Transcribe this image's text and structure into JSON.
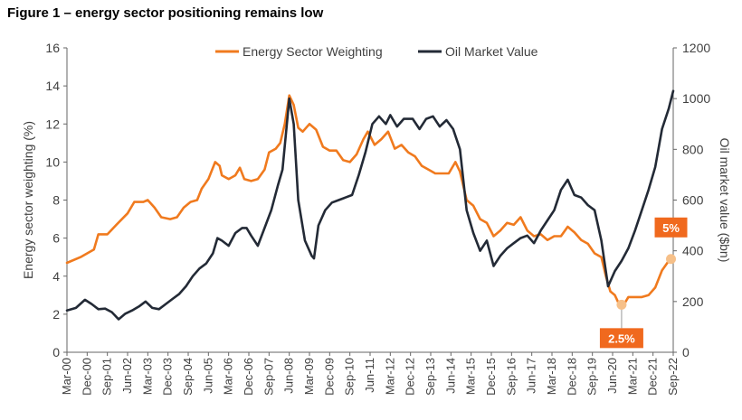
{
  "figure_title": "Figure 1 – energy sector positioning remains low",
  "colors": {
    "energy": "#f07a1e",
    "oil": "#232a36",
    "callout": "#f0691e",
    "marker": "#f6c089",
    "axis": "#666666"
  },
  "chart_data": {
    "type": "line",
    "title": "Figure 1 – energy sector positioning remains low",
    "ylabel": "Energy sector weighting (%)",
    "y2label": "Oil market value ($bn)",
    "xlabel": "",
    "ylim": [
      0,
      16
    ],
    "y2lim": [
      0,
      1200
    ],
    "yticks": [
      "0",
      "2",
      "4",
      "6",
      "8",
      "10",
      "12",
      "14",
      "16"
    ],
    "y2ticks": [
      "0",
      "200",
      "400",
      "600",
      "800",
      "1000",
      "1200"
    ],
    "xtick_labels": [
      "Mar-00",
      "Dec-00",
      "Sep-01",
      "Jun-02",
      "Mar-03",
      "Dec-03",
      "Sep-04",
      "Jun-05",
      "Mar-06",
      "Dec-06",
      "Sep-07",
      "Jun-08",
      "Mar-09",
      "Dec-09",
      "Sep-10",
      "Jun-11",
      "Mar-12",
      "Dec-12",
      "Sep-13",
      "Jun-14",
      "Mar-15",
      "Dec-15",
      "Sep-16",
      "Jun-17",
      "Mar-18",
      "Dec-18",
      "Sep-19",
      "Jun-20",
      "Mar-21",
      "Dec-21",
      "Sep-22"
    ],
    "legend": "top",
    "grid": false,
    "series": [
      {
        "name": "Energy Sector Weighting",
        "axis": "left",
        "points": [
          [
            "2000-03",
            4.7
          ],
          [
            "2000-09",
            5.0
          ],
          [
            "2001-03",
            5.4
          ],
          [
            "2001-05",
            6.2
          ],
          [
            "2001-09",
            6.2
          ],
          [
            "2002-01",
            6.7
          ],
          [
            "2002-06",
            7.3
          ],
          [
            "2002-09",
            7.9
          ],
          [
            "2003-01",
            7.9
          ],
          [
            "2003-03",
            8.0
          ],
          [
            "2003-06",
            7.6
          ],
          [
            "2003-09",
            7.1
          ],
          [
            "2004-01",
            7.0
          ],
          [
            "2004-04",
            7.1
          ],
          [
            "2004-07",
            7.6
          ],
          [
            "2004-10",
            7.9
          ],
          [
            "2005-01",
            8.0
          ],
          [
            "2005-03",
            8.6
          ],
          [
            "2005-06",
            9.1
          ],
          [
            "2005-09",
            10.0
          ],
          [
            "2005-11",
            9.8
          ],
          [
            "2005-12",
            9.3
          ],
          [
            "2006-03",
            9.1
          ],
          [
            "2006-06",
            9.3
          ],
          [
            "2006-08",
            9.7
          ],
          [
            "2006-10",
            9.1
          ],
          [
            "2007-01",
            9.0
          ],
          [
            "2007-04",
            9.1
          ],
          [
            "2007-07",
            9.6
          ],
          [
            "2007-09",
            10.5
          ],
          [
            "2007-12",
            10.7
          ],
          [
            "2008-02",
            11.0
          ],
          [
            "2008-04",
            12.0
          ],
          [
            "2008-06",
            13.5
          ],
          [
            "2008-08",
            13.0
          ],
          [
            "2008-10",
            11.8
          ],
          [
            "2008-12",
            11.6
          ],
          [
            "2009-03",
            12.0
          ],
          [
            "2009-06",
            11.7
          ],
          [
            "2009-09",
            10.8
          ],
          [
            "2009-12",
            10.6
          ],
          [
            "2010-03",
            10.6
          ],
          [
            "2010-06",
            10.1
          ],
          [
            "2010-09",
            10.0
          ],
          [
            "2010-12",
            10.4
          ],
          [
            "2011-03",
            11.2
          ],
          [
            "2011-05",
            11.6
          ],
          [
            "2011-08",
            10.9
          ],
          [
            "2011-11",
            11.2
          ],
          [
            "2012-02",
            11.6
          ],
          [
            "2012-05",
            10.7
          ],
          [
            "2012-08",
            10.9
          ],
          [
            "2012-11",
            10.5
          ],
          [
            "2013-02",
            10.3
          ],
          [
            "2013-05",
            9.8
          ],
          [
            "2013-08",
            9.6
          ],
          [
            "2013-11",
            9.4
          ],
          [
            "2014-02",
            9.4
          ],
          [
            "2014-05",
            9.4
          ],
          [
            "2014-08",
            10.0
          ],
          [
            "2014-10",
            9.5
          ],
          [
            "2015-01",
            8.0
          ],
          [
            "2015-04",
            7.7
          ],
          [
            "2015-07",
            7.0
          ],
          [
            "2015-10",
            6.8
          ],
          [
            "2016-01",
            6.1
          ],
          [
            "2016-04",
            6.4
          ],
          [
            "2016-07",
            6.8
          ],
          [
            "2016-10",
            6.7
          ],
          [
            "2017-01",
            7.1
          ],
          [
            "2017-04",
            6.4
          ],
          [
            "2017-07",
            6.1
          ],
          [
            "2017-10",
            6.2
          ],
          [
            "2018-01",
            5.9
          ],
          [
            "2018-04",
            6.1
          ],
          [
            "2018-07",
            6.1
          ],
          [
            "2018-10",
            6.6
          ],
          [
            "2019-01",
            6.3
          ],
          [
            "2019-04",
            5.9
          ],
          [
            "2019-07",
            5.7
          ],
          [
            "2019-10",
            5.2
          ],
          [
            "2020-01",
            5.0
          ],
          [
            "2020-03",
            4.0
          ],
          [
            "2020-05",
            3.2
          ],
          [
            "2020-07",
            3.0
          ],
          [
            "2020-09",
            2.5
          ],
          [
            "2020-11",
            2.5
          ],
          [
            "2021-01",
            2.9
          ],
          [
            "2021-04",
            2.9
          ],
          [
            "2021-07",
            2.9
          ],
          [
            "2021-10",
            3.0
          ],
          [
            "2022-01",
            3.4
          ],
          [
            "2022-04",
            4.3
          ],
          [
            "2022-07",
            4.8
          ],
          [
            "2022-09",
            5.0
          ]
        ]
      },
      {
        "name": "Oil Market Value",
        "axis": "right",
        "points": [
          [
            "2000-03",
            165
          ],
          [
            "2000-07",
            175
          ],
          [
            "2000-11",
            207
          ],
          [
            "2001-02",
            190
          ],
          [
            "2001-05",
            170
          ],
          [
            "2001-08",
            172
          ],
          [
            "2001-11",
            158
          ],
          [
            "2002-02",
            130
          ],
          [
            "2002-05",
            152
          ],
          [
            "2002-08",
            165
          ],
          [
            "2002-11",
            180
          ],
          [
            "2003-02",
            200
          ],
          [
            "2003-05",
            175
          ],
          [
            "2003-08",
            170
          ],
          [
            "2003-11",
            190
          ],
          [
            "2004-02",
            210
          ],
          [
            "2004-05",
            230
          ],
          [
            "2004-08",
            260
          ],
          [
            "2004-11",
            300
          ],
          [
            "2005-02",
            330
          ],
          [
            "2005-05",
            350
          ],
          [
            "2005-08",
            390
          ],
          [
            "2005-10",
            450
          ],
          [
            "2005-12",
            440
          ],
          [
            "2006-03",
            420
          ],
          [
            "2006-06",
            470
          ],
          [
            "2006-09",
            490
          ],
          [
            "2006-11",
            490
          ],
          [
            "2007-01",
            460
          ],
          [
            "2007-04",
            420
          ],
          [
            "2007-07",
            490
          ],
          [
            "2007-10",
            560
          ],
          [
            "2008-01",
            660
          ],
          [
            "2008-03",
            720
          ],
          [
            "2008-06",
            1000
          ],
          [
            "2008-08",
            900
          ],
          [
            "2008-10",
            600
          ],
          [
            "2009-01",
            440
          ],
          [
            "2009-04",
            380
          ],
          [
            "2009-05",
            370
          ],
          [
            "2009-07",
            500
          ],
          [
            "2009-10",
            560
          ],
          [
            "2010-01",
            590
          ],
          [
            "2010-04",
            600
          ],
          [
            "2010-07",
            610
          ],
          [
            "2010-10",
            620
          ],
          [
            "2011-01",
            700
          ],
          [
            "2011-04",
            790
          ],
          [
            "2011-07",
            900
          ],
          [
            "2011-10",
            930
          ],
          [
            "2012-01",
            900
          ],
          [
            "2012-03",
            935
          ],
          [
            "2012-06",
            890
          ],
          [
            "2012-09",
            920
          ],
          [
            "2013-01",
            920
          ],
          [
            "2013-04",
            880
          ],
          [
            "2013-07",
            920
          ],
          [
            "2013-10",
            930
          ],
          [
            "2014-01",
            890
          ],
          [
            "2014-04",
            915
          ],
          [
            "2014-07",
            880
          ],
          [
            "2014-10",
            800
          ],
          [
            "2015-01",
            560
          ],
          [
            "2015-04",
            470
          ],
          [
            "2015-07",
            400
          ],
          [
            "2015-10",
            440
          ],
          [
            "2016-01",
            340
          ],
          [
            "2016-04",
            380
          ],
          [
            "2016-07",
            410
          ],
          [
            "2016-10",
            430
          ],
          [
            "2017-01",
            450
          ],
          [
            "2017-04",
            460
          ],
          [
            "2017-07",
            430
          ],
          [
            "2017-10",
            480
          ],
          [
            "2018-01",
            520
          ],
          [
            "2018-04",
            560
          ],
          [
            "2018-07",
            640
          ],
          [
            "2018-10",
            680
          ],
          [
            "2019-01",
            620
          ],
          [
            "2019-04",
            610
          ],
          [
            "2019-07",
            580
          ],
          [
            "2019-10",
            560
          ],
          [
            "2020-01",
            440
          ],
          [
            "2020-04",
            260
          ],
          [
            "2020-07",
            320
          ],
          [
            "2020-10",
            360
          ],
          [
            "2021-01",
            410
          ],
          [
            "2021-04",
            480
          ],
          [
            "2021-07",
            560
          ],
          [
            "2021-10",
            640
          ],
          [
            "2022-01",
            730
          ],
          [
            "2022-04",
            880
          ],
          [
            "2022-07",
            960
          ],
          [
            "2022-09",
            1030
          ]
        ]
      }
    ],
    "annotations": [
      {
        "label": "2.5%",
        "x": "2020-10",
        "y": 2.5,
        "axis": "left",
        "position": "below"
      },
      {
        "label": "5%",
        "x": "2022-08",
        "y": 4.9,
        "axis": "left",
        "position": "above"
      }
    ]
  }
}
